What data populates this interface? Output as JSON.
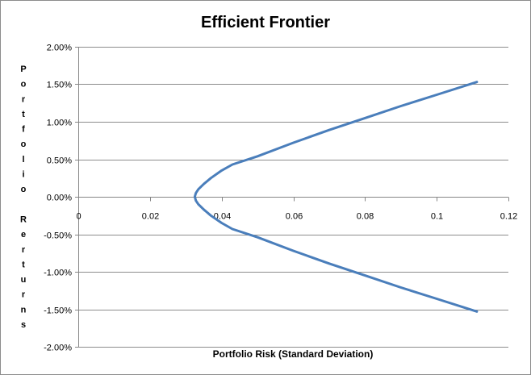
{
  "chart_data": {
    "type": "scatter",
    "title": "Efficient Frontier",
    "xlabel": "Portfolio Risk (Standard  Deviation)",
    "ylabel": "Portfolio Rerturns",
    "xlim": [
      0,
      0.12
    ],
    "ylim": [
      -0.02,
      0.02
    ],
    "x_ticks": [
      "0",
      "0.02",
      "0.04",
      "0.06",
      "0.08",
      "0.1",
      "0.12"
    ],
    "y_ticks": [
      "2.00%",
      "1.50%",
      "1.00%",
      "0.50%",
      "0.00%",
      "-0.50%",
      "-1.00%",
      "-1.50%",
      "-2.00%"
    ],
    "grid": true,
    "series_color": "#4a7ebb",
    "series": [
      {
        "x": [
          0.1112,
          0.1,
          0.09,
          0.08,
          0.07,
          0.06,
          0.05,
          0.043,
          0.04,
          0.037,
          0.035,
          0.0335,
          0.0328,
          0.0325,
          0.0328,
          0.0335,
          0.035,
          0.037,
          0.04,
          0.043,
          0.05,
          0.06,
          0.07,
          0.08,
          0.09,
          0.1,
          0.1112
        ],
        "y": [
          0.0153,
          0.0136,
          0.0121,
          0.0105,
          0.0089,
          0.0072,
          0.0054,
          0.0043,
          0.0035,
          0.0025,
          0.0017,
          0.001,
          0.0005,
          0.0,
          -0.0005,
          -0.001,
          -0.0017,
          -0.0025,
          -0.0035,
          -0.0043,
          -0.0054,
          -0.0072,
          -0.0089,
          -0.0105,
          -0.0121,
          -0.0136,
          -0.0153
        ]
      }
    ]
  }
}
